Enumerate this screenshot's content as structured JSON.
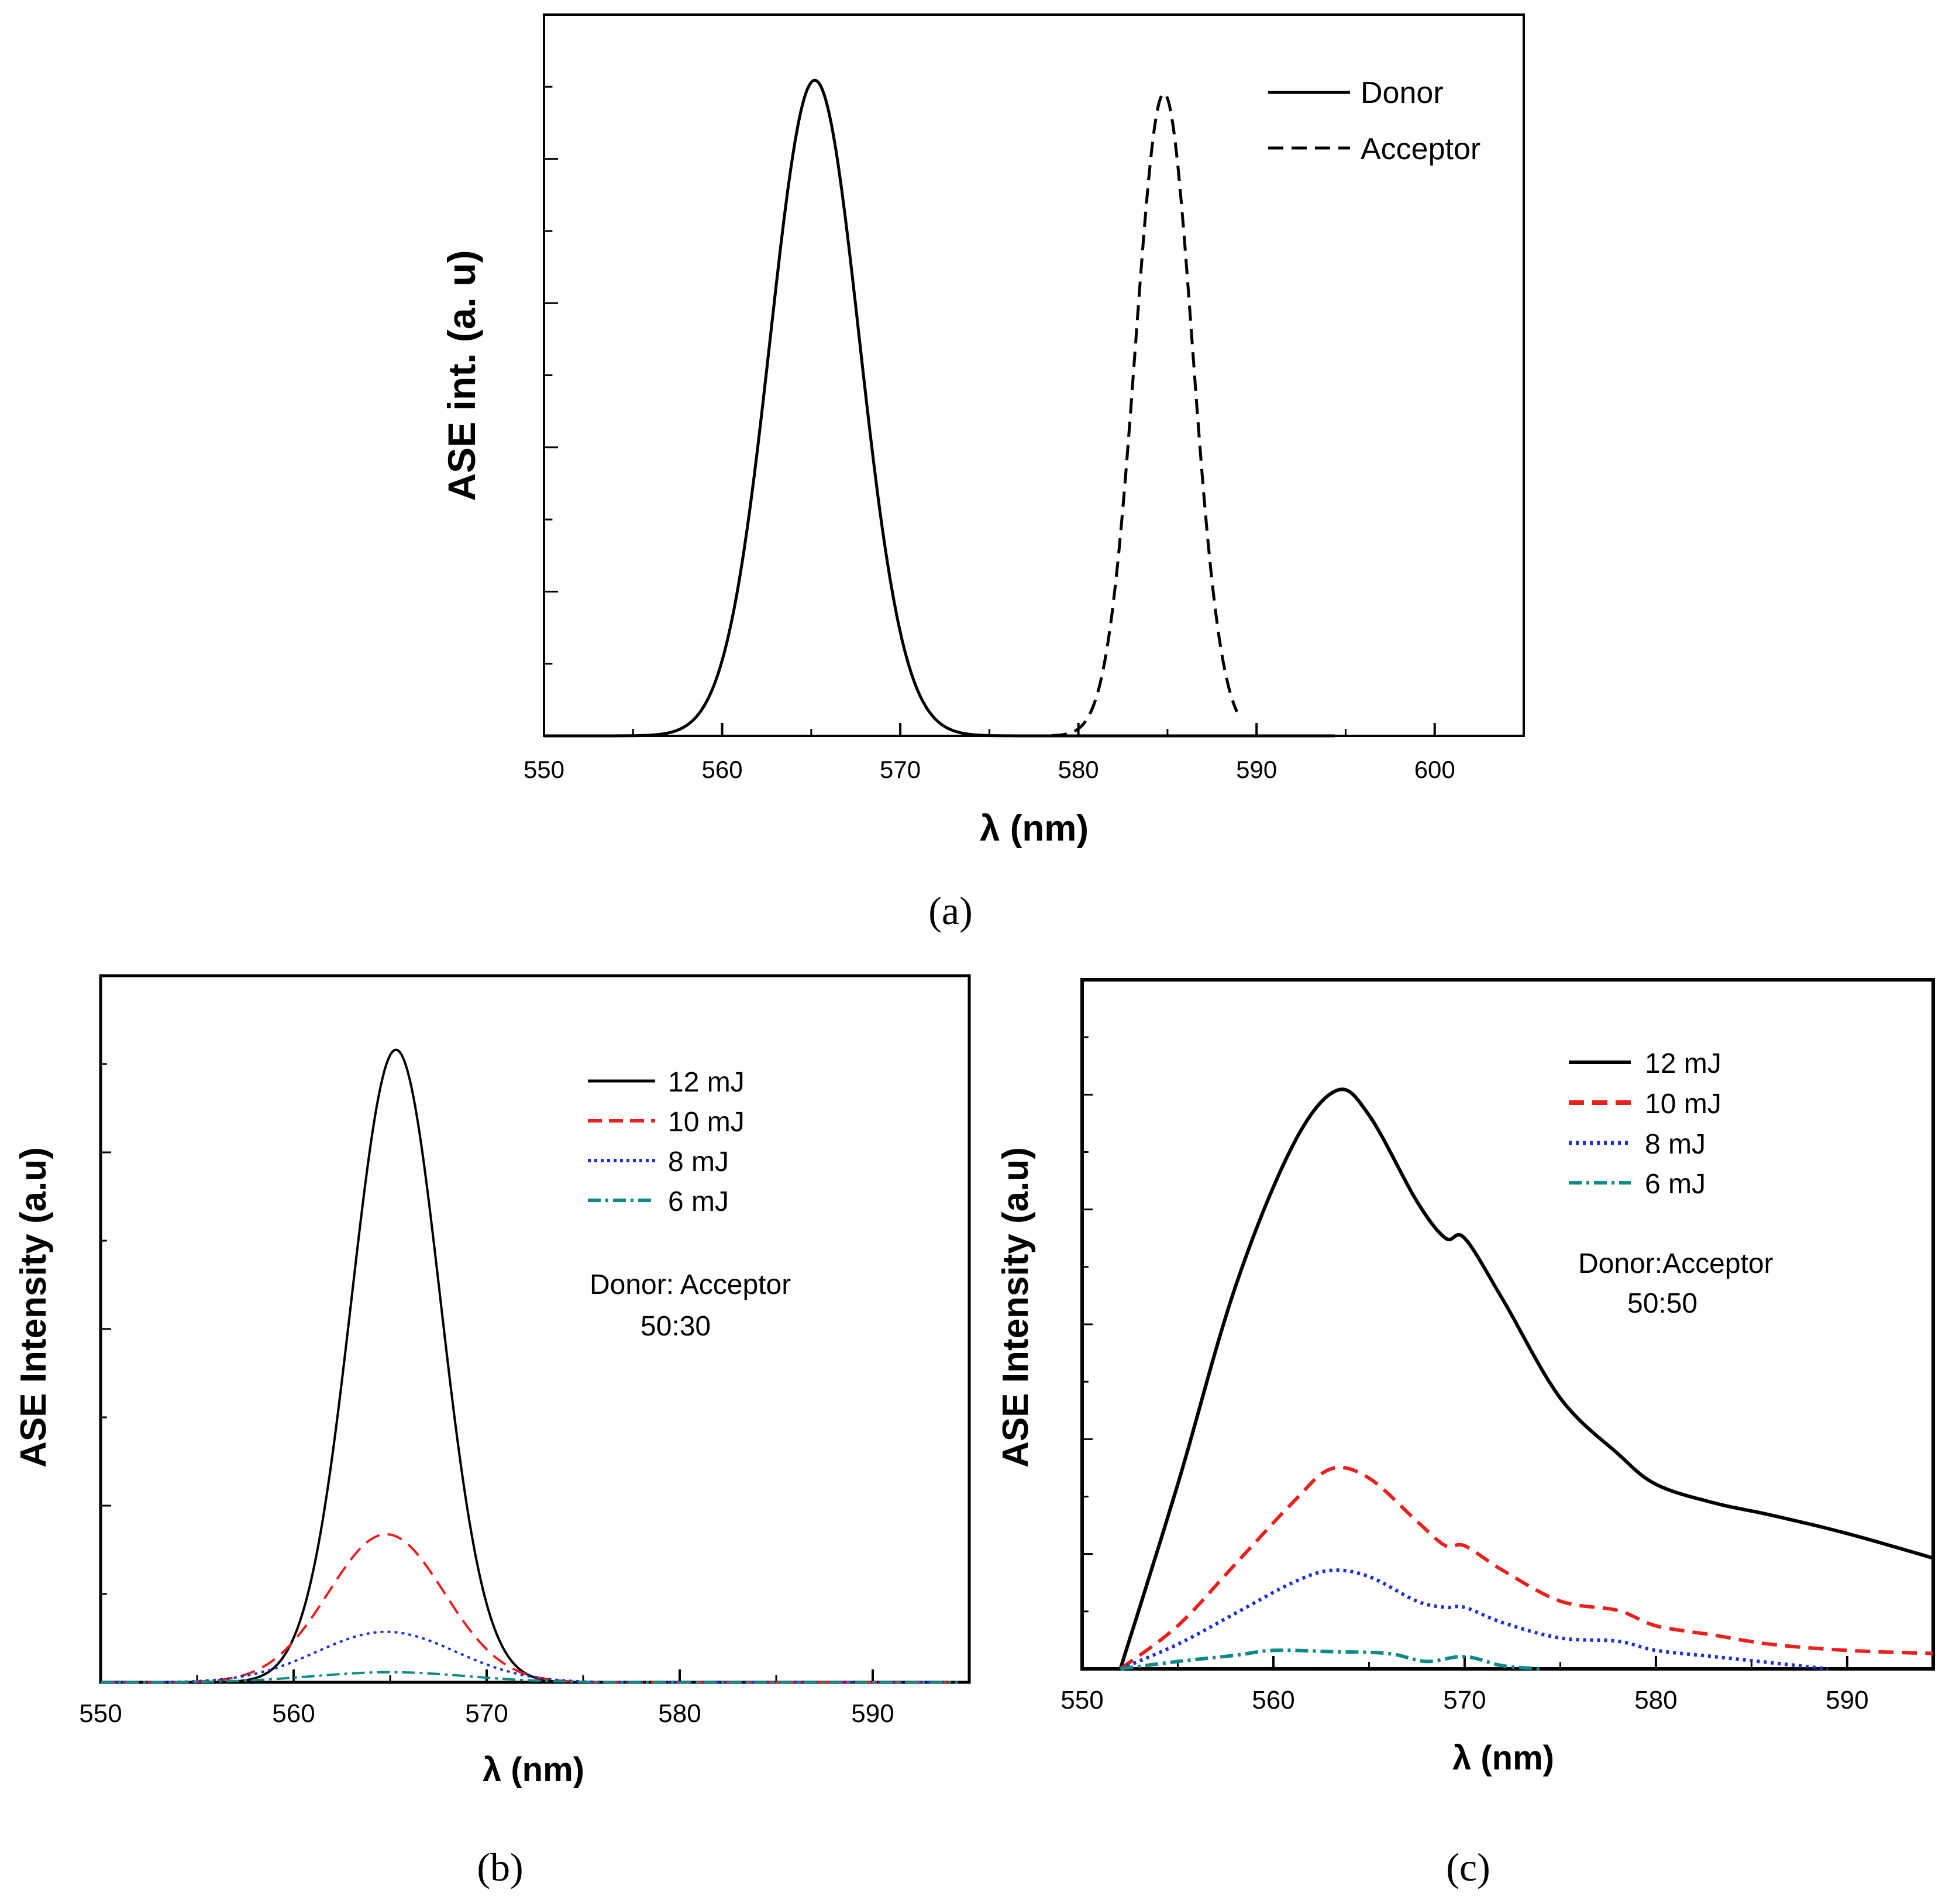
{
  "chart_data": [
    {
      "panel": "(a)",
      "type": "line",
      "xlabel": "λ (nm)",
      "ylabel": "ASE int. (a. u)",
      "xlim": [
        550,
        605
      ],
      "ylim": [
        0,
        1.1
      ],
      "xticks": [
        550,
        560,
        570,
        580,
        590,
        600
      ],
      "xtick_labels": [
        "550",
        "560",
        "570",
        "580",
        "590",
        "600"
      ],
      "yticks_minor_count": 9,
      "legend_position": "top-right",
      "series": [
        {
          "name": "Donor",
          "style": "solid",
          "color": "#000000",
          "peak": 565.2,
          "width": 2.5,
          "amplitude": 1.0,
          "x_range": [
            550,
            594.5
          ]
        },
        {
          "name": "Acceptor",
          "style": "dashed",
          "color": "#000000",
          "peak": 584.8,
          "width": 1.6,
          "amplitude": 0.98,
          "x_range": [
            578.5,
            589
          ]
        }
      ]
    },
    {
      "panel": "(b)",
      "type": "line",
      "xlabel": "λ (nm)",
      "ylabel": "ASE Intensity (a.u)",
      "xlim": [
        550,
        595
      ],
      "ylim": [
        0,
        1.05
      ],
      "xticks": [
        550,
        560,
        570,
        580,
        590
      ],
      "xtick_labels": [
        "550",
        "560",
        "570",
        "580",
        "590"
      ],
      "legend_position": "top-right",
      "annotation": [
        "Donor: Acceptor",
        "50:30"
      ],
      "series": [
        {
          "name": "12 mJ",
          "style": "solid",
          "color": "#000000",
          "peak": 565.3,
          "width": 2.3,
          "amplitude": 0.94
        },
        {
          "name": "10 mJ",
          "style": "dashed",
          "color": "#e8201e",
          "peak": 564.8,
          "width": 3.0,
          "amplitude": 0.22
        },
        {
          "name": "8 mJ",
          "style": "dotted",
          "color": "#1a2ed1",
          "peak": 564.8,
          "width": 3.6,
          "amplitude": 0.075
        },
        {
          "name": "6 mJ",
          "style": "dashdot",
          "color": "#0d8a86",
          "peak": 565.0,
          "width": 4.0,
          "amplitude": 0.015
        }
      ]
    },
    {
      "panel": "(c)",
      "type": "line",
      "xlabel": "λ (nm)",
      "ylabel": "ASE Intensity (a.u)",
      "xlim": [
        550,
        594.5
      ],
      "ylim": [
        0,
        1.12
      ],
      "xticks": [
        550,
        560,
        570,
        580,
        590
      ],
      "xtick_labels": [
        "550",
        "560",
        "570",
        "580",
        "590"
      ],
      "legend_position": "top-right",
      "annotation": [
        "Donor:Acceptor",
        "50:50"
      ],
      "series": [
        {
          "name": "12 mJ",
          "style": "solid",
          "color": "#000000",
          "x": [
            552,
            555,
            558,
            561,
            563.3,
            565,
            567.5,
            569,
            570,
            572,
            575,
            578,
            580,
            583,
            586,
            590,
            594.5
          ],
          "y": [
            0,
            0.3,
            0.62,
            0.85,
            0.94,
            0.9,
            0.76,
            0.7,
            0.7,
            0.6,
            0.44,
            0.35,
            0.3,
            0.27,
            0.25,
            0.22,
            0.18
          ]
        },
        {
          "name": "10 mJ",
          "style": "dashed",
          "color": "#e8201e",
          "x": [
            552,
            555,
            558,
            561,
            563,
            565,
            567.5,
            569,
            570,
            572,
            575,
            578,
            580,
            583,
            586,
            590,
            594.5
          ],
          "y": [
            0,
            0.07,
            0.17,
            0.27,
            0.325,
            0.31,
            0.24,
            0.2,
            0.2,
            0.16,
            0.11,
            0.095,
            0.07,
            0.055,
            0.04,
            0.03,
            0.025
          ]
        },
        {
          "name": "8 mJ",
          "style": "dotted",
          "color": "#1a2ed1",
          "x": [
            552,
            555,
            558,
            561,
            563,
            565,
            567.5,
            569,
            570,
            572,
            575,
            578,
            580,
            583,
            586,
            589
          ],
          "y": [
            0,
            0.04,
            0.09,
            0.14,
            0.16,
            0.15,
            0.11,
            0.1,
            0.1,
            0.075,
            0.05,
            0.045,
            0.03,
            0.02,
            0.01,
            0.0
          ]
        },
        {
          "name": "6 mJ",
          "style": "dashdot",
          "color": "#0d8a86",
          "x": [
            552,
            555,
            558,
            560,
            563,
            566,
            568,
            570,
            572,
            574
          ],
          "y": [
            0,
            0.012,
            0.022,
            0.03,
            0.028,
            0.025,
            0.012,
            0.02,
            0.005,
            0.0
          ]
        }
      ]
    }
  ],
  "captions": {
    "a": "(a)",
    "b": "(b)",
    "c": "(c)"
  }
}
